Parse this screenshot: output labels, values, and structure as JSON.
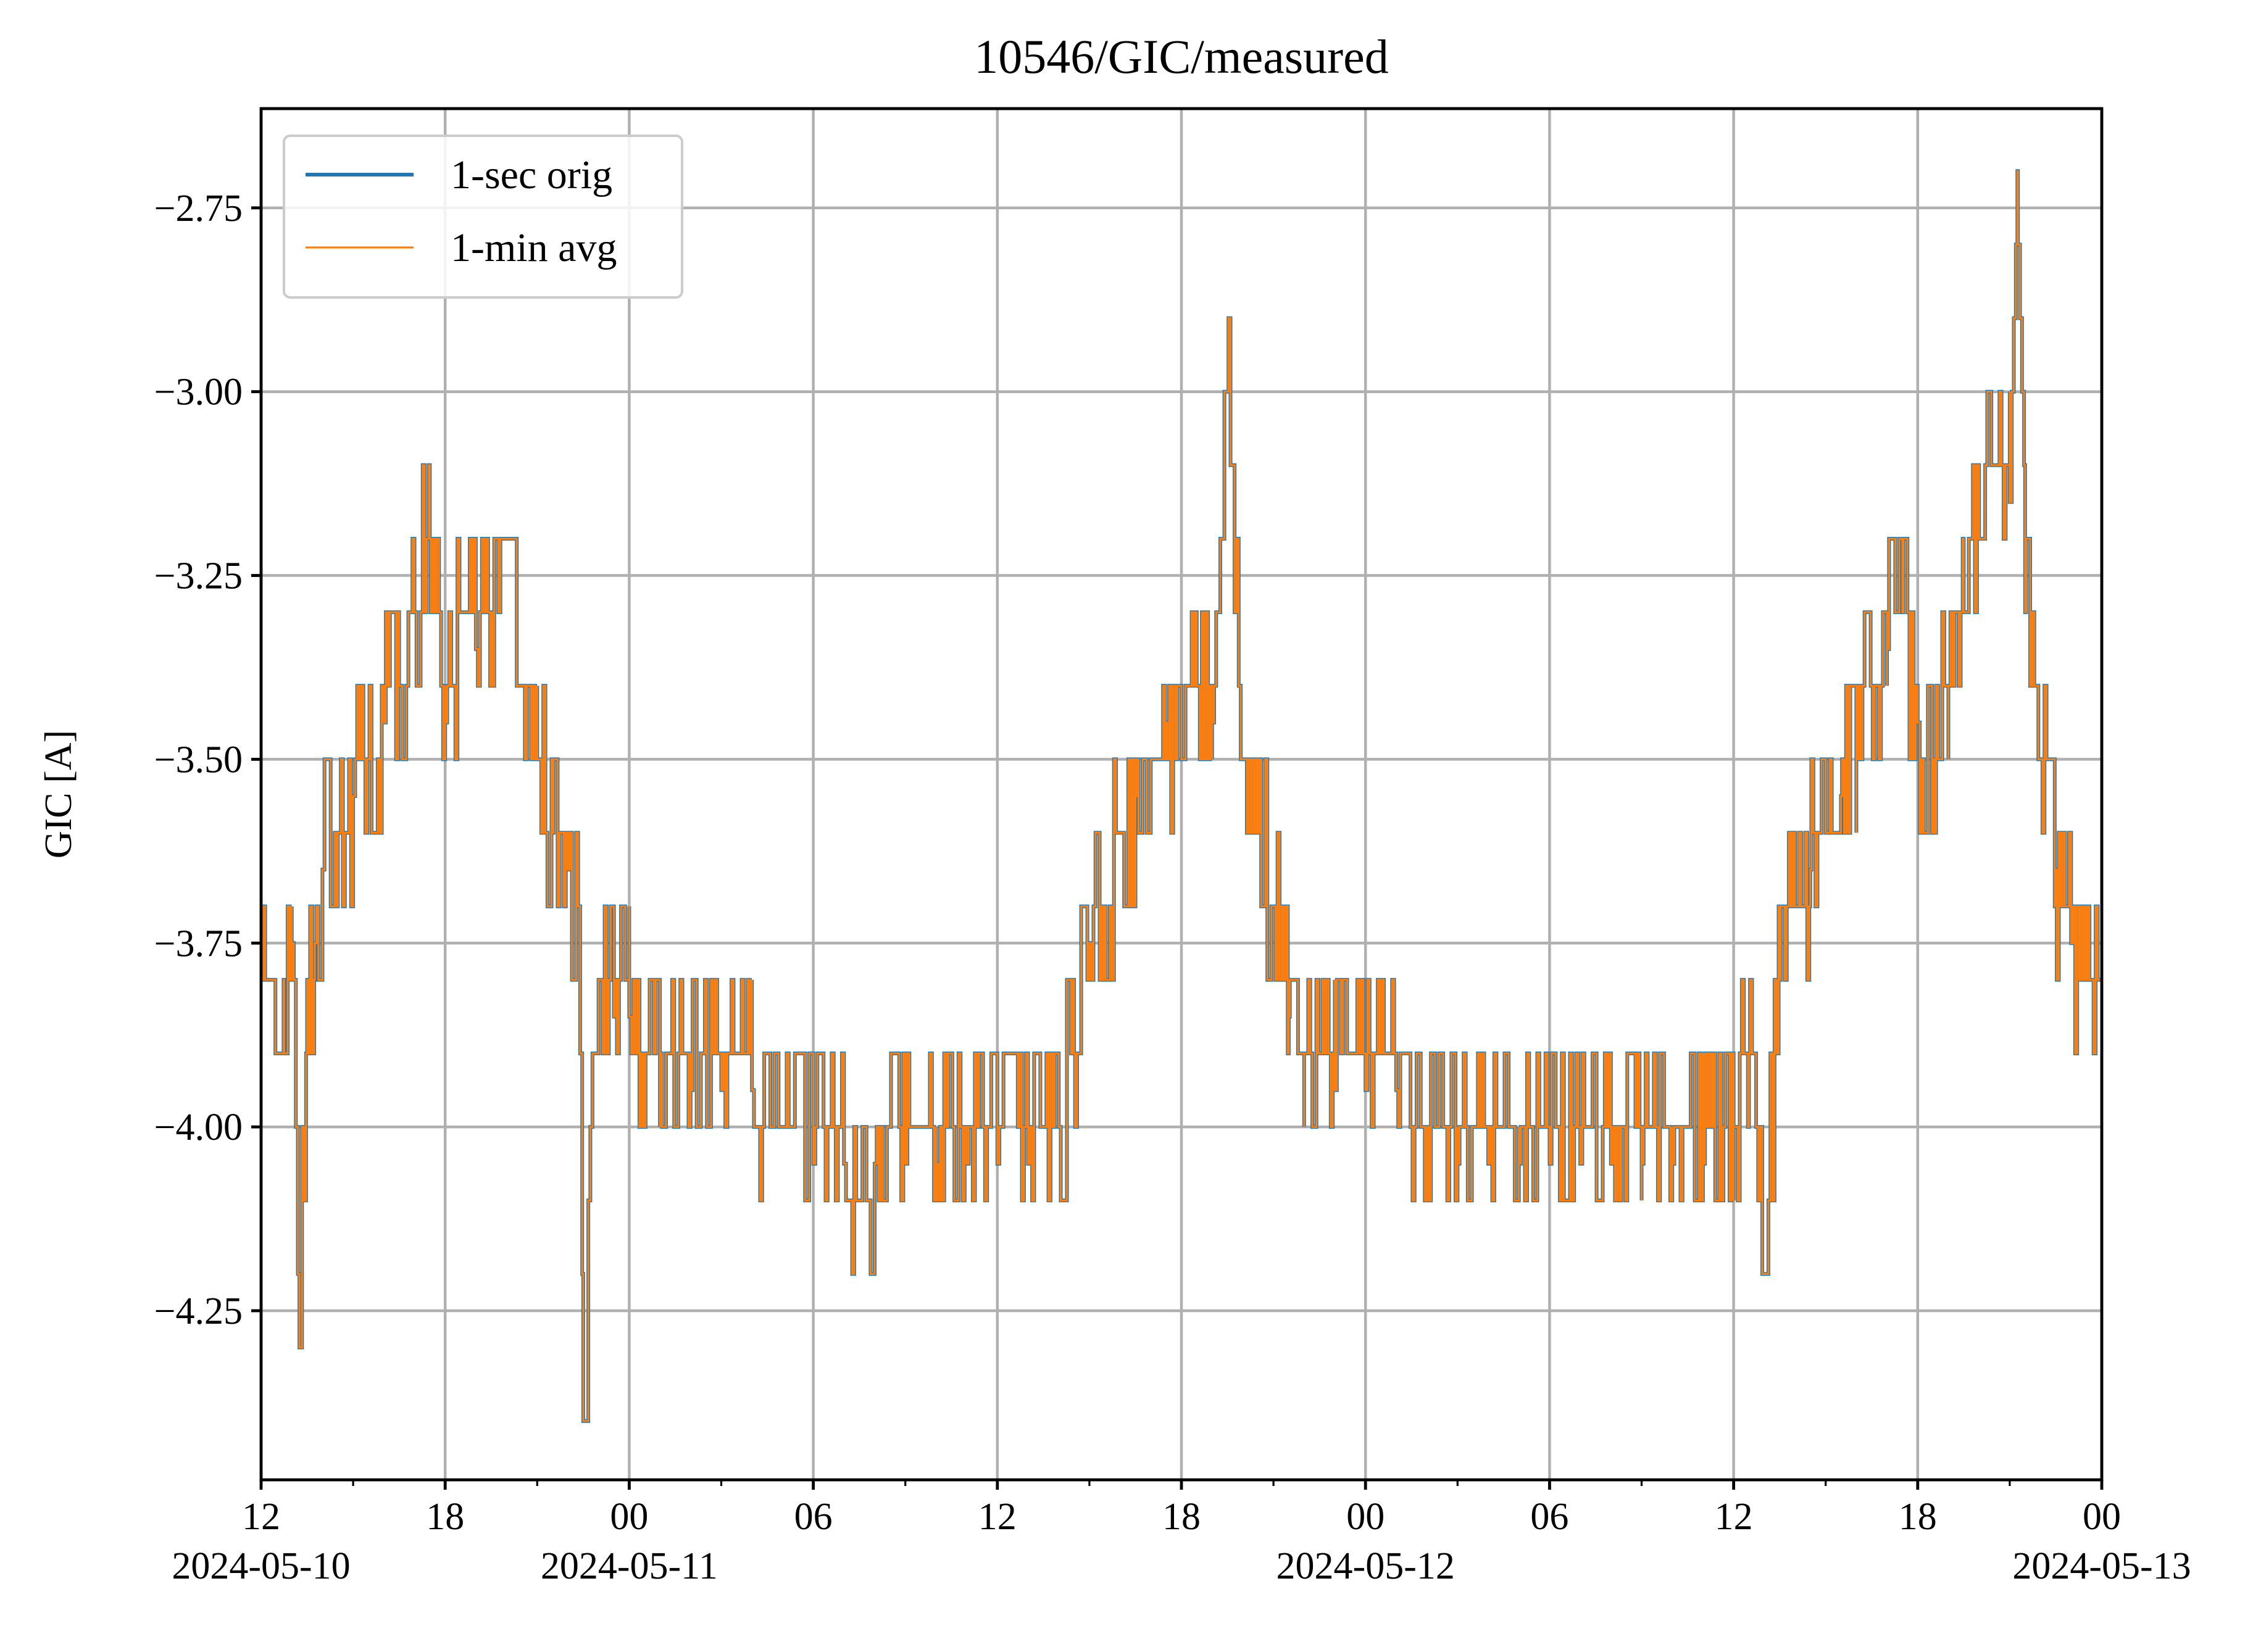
{
  "chart_data": {
    "type": "line",
    "title": "10546/GIC/measured",
    "xlabel": "",
    "ylabel": "GIC [A]",
    "x_range": [
      "2024-05-10 12:00",
      "2024-05-13 00:00"
    ],
    "ylim": [
      -4.48,
      -2.615
    ],
    "grid": true,
    "legend_position": "upper left",
    "y_ticks": [
      -4.25,
      -4.0,
      -3.75,
      -3.5,
      -3.25,
      -3.0,
      -2.75
    ],
    "y_tick_labels": [
      "−4.25",
      "−4.00",
      "−3.75",
      "−3.50",
      "−3.25",
      "−3.00",
      "−2.75"
    ],
    "x_ticks": [
      {
        "value": "2024-05-10 12:00",
        "label": "12",
        "date_label": "2024-05-10"
      },
      {
        "value": "2024-05-10 18:00",
        "label": "18",
        "date_label": ""
      },
      {
        "value": "2024-05-11 00:00",
        "label": "00",
        "date_label": "2024-05-11"
      },
      {
        "value": "2024-05-11 06:00",
        "label": "06",
        "date_label": ""
      },
      {
        "value": "2024-05-11 12:00",
        "label": "12",
        "date_label": ""
      },
      {
        "value": "2024-05-11 18:00",
        "label": "18",
        "date_label": ""
      },
      {
        "value": "2024-05-12 00:00",
        "label": "00",
        "date_label": "2024-05-12"
      },
      {
        "value": "2024-05-12 06:00",
        "label": "06",
        "date_label": ""
      },
      {
        "value": "2024-05-12 12:00",
        "label": "12",
        "date_label": ""
      },
      {
        "value": "2024-05-12 18:00",
        "label": "18",
        "date_label": ""
      },
      {
        "value": "2024-05-13 00:00",
        "label": "00",
        "date_label": "2024-05-13"
      }
    ],
    "minor_tick_step_hours": 3,
    "series": [
      {
        "name": "1-sec orig",
        "color": "#1f77b4",
        "x": [
          "2024-05-10 12:00",
          "2024-05-10 12:45",
          "2024-05-10 13:00",
          "2024-05-10 13:15",
          "2024-05-10 13:30",
          "2024-05-10 13:45",
          "2024-05-10 14:00",
          "2024-05-10 14:30",
          "2024-05-10 15:00",
          "2024-05-10 15:30",
          "2024-05-10 16:00",
          "2024-05-10 16:30",
          "2024-05-10 17:00",
          "2024-05-10 17:30",
          "2024-05-10 18:00",
          "2024-05-10 18:30",
          "2024-05-10 19:00",
          "2024-05-10 19:30",
          "2024-05-10 20:00",
          "2024-05-10 20:30",
          "2024-05-10 21:00",
          "2024-05-10 21:30",
          "2024-05-10 22:00",
          "2024-05-10 22:20",
          "2024-05-10 22:30",
          "2024-05-10 23:00",
          "2024-05-10 23:30",
          "2024-05-11 00:00",
          "2024-05-11 01:00",
          "2024-05-11 02:00",
          "2024-05-11 03:00",
          "2024-05-11 04:00",
          "2024-05-11 05:00",
          "2024-05-11 06:00",
          "2024-05-11 07:00",
          "2024-05-11 07:30",
          "2024-05-11 08:00",
          "2024-05-11 09:00",
          "2024-05-11 10:00",
          "2024-05-11 11:00",
          "2024-05-11 12:00",
          "2024-05-11 13:00",
          "2024-05-11 14:00",
          "2024-05-11 14:30",
          "2024-05-11 15:00",
          "2024-05-11 15:30",
          "2024-05-11 16:00",
          "2024-05-11 16:30",
          "2024-05-11 17:00",
          "2024-05-11 17:30",
          "2024-05-11 18:00",
          "2024-05-11 18:30",
          "2024-05-11 19:00",
          "2024-05-11 19:30",
          "2024-05-11 20:00",
          "2024-05-11 20:30",
          "2024-05-11 21:00",
          "2024-05-11 21:30",
          "2024-05-11 22:00",
          "2024-05-11 23:00",
          "2024-05-12 00:00",
          "2024-05-12 01:00",
          "2024-05-12 02:00",
          "2024-05-12 03:00",
          "2024-05-12 04:00",
          "2024-05-12 05:00",
          "2024-05-12 06:00",
          "2024-05-12 07:00",
          "2024-05-12 08:00",
          "2024-05-12 09:00",
          "2024-05-12 10:00",
          "2024-05-12 11:00",
          "2024-05-12 12:00",
          "2024-05-12 12:30",
          "2024-05-12 13:00",
          "2024-05-12 13:30",
          "2024-05-12 14:00",
          "2024-05-12 14:30",
          "2024-05-12 15:00",
          "2024-05-12 15:30",
          "2024-05-12 16:00",
          "2024-05-12 16:30",
          "2024-05-12 17:00",
          "2024-05-12 17:30",
          "2024-05-12 18:00",
          "2024-05-12 18:30",
          "2024-05-12 19:00",
          "2024-05-12 19:30",
          "2024-05-12 20:00",
          "2024-05-12 20:30",
          "2024-05-12 21:00",
          "2024-05-12 21:15",
          "2024-05-12 21:30",
          "2024-05-12 22:00",
          "2024-05-12 22:30",
          "2024-05-12 23:00",
          "2024-05-12 23:30",
          "2024-05-13 00:00"
        ],
        "y": [
          -3.8,
          -3.9,
          -3.75,
          -4.3,
          -3.8,
          -3.75,
          -3.65,
          -3.6,
          -3.55,
          -3.5,
          -3.45,
          -3.4,
          -3.3,
          -3.2,
          -3.45,
          -3.3,
          -3.35,
          -3.3,
          -3.2,
          -3.4,
          -3.5,
          -3.6,
          -3.65,
          -3.7,
          -4.4,
          -3.8,
          -3.85,
          -3.85,
          -3.9,
          -3.95,
          -3.95,
          -3.95,
          -4.0,
          -4.05,
          -4.05,
          -4.1,
          -4.05,
          -4.05,
          -4.05,
          -4.05,
          -4.05,
          -4.05,
          -4.0,
          -3.9,
          -3.75,
          -3.7,
          -3.6,
          -3.55,
          -3.5,
          -3.45,
          -3.5,
          -3.4,
          -3.45,
          -3.0,
          -3.5,
          -3.6,
          -3.7,
          -3.85,
          -3.9,
          -3.95,
          -3.95,
          -3.95,
          -4.0,
          -4.05,
          -4.05,
          -4.05,
          -4.05,
          -4.05,
          -4.05,
          -4.05,
          -4.05,
          -4.05,
          -4.0,
          -3.9,
          -4.2,
          -3.8,
          -3.7,
          -3.65,
          -3.6,
          -3.55,
          -3.5,
          -3.4,
          -3.35,
          -3.3,
          -3.45,
          -3.5,
          -3.4,
          -3.3,
          -3.2,
          -3.1,
          -3.15,
          -2.7,
          -3.3,
          -3.5,
          -3.65,
          -3.75,
          -3.8,
          -3.8
        ]
      },
      {
        "name": "1-min avg",
        "color": "#ff7f0e"
      }
    ]
  }
}
